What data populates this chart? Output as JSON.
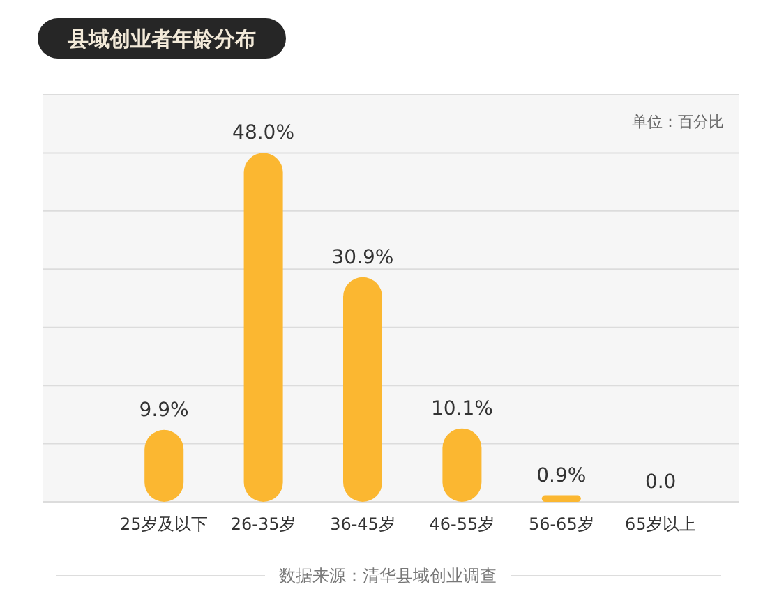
{
  "chart_data": {
    "type": "bar",
    "title": "县域创业者年龄分布",
    "annotations": [
      "单位：百分比",
      "数据来源：清华县域创业调查"
    ],
    "categories": [
      "25岁及以下",
      "26-35岁",
      "36-45岁",
      "46-55岁",
      "56-65岁",
      "65岁以上"
    ],
    "values": [
      9.9,
      48.0,
      30.9,
      10.1,
      0.9,
      0.0
    ],
    "value_labels": [
      "9.9%",
      "48.0%",
      "30.9%",
      "10.1%",
      "0.9%",
      "0.0"
    ],
    "color": "#fbb731",
    "ylim": [
      0,
      56
    ],
    "yticks": [
      {
        "value": 0,
        "label": null
      },
      {
        "value": 8,
        "label": null
      },
      {
        "value": 16,
        "label": null
      },
      {
        "value": 24,
        "label": null
      },
      {
        "value": 32,
        "label": null
      },
      {
        "value": 40,
        "label": null
      },
      {
        "value": 48,
        "label": null
      },
      {
        "value": 56,
        "label": null
      }
    ],
    "grid": "y"
  }
}
